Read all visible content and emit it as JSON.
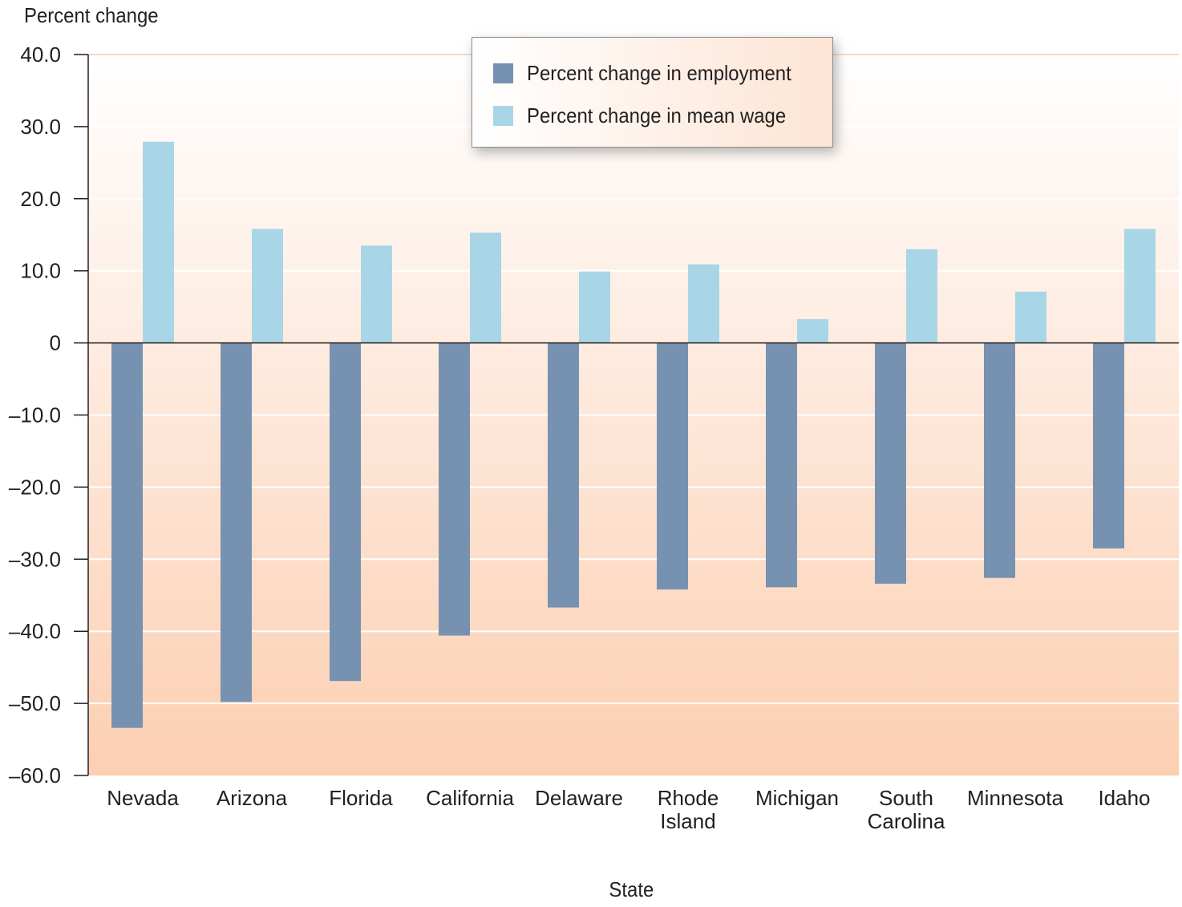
{
  "chart_data": {
    "type": "bar",
    "ylabel": "Percent change",
    "xlabel": "State",
    "ylim": [
      -60,
      40
    ],
    "yticks": [
      {
        "value": 40,
        "label": "40.0"
      },
      {
        "value": 30,
        "label": "30.0"
      },
      {
        "value": 20,
        "label": "20.0"
      },
      {
        "value": 10,
        "label": "10.0"
      },
      {
        "value": 0,
        "label": "0"
      },
      {
        "value": -10,
        "label": "–10.0"
      },
      {
        "value": -20,
        "label": "–20.0"
      },
      {
        "value": -30,
        "label": "–30.0"
      },
      {
        "value": -40,
        "label": "–40.0"
      },
      {
        "value": -50,
        "label": "–50.0"
      },
      {
        "value": -60,
        "label": "–60.0"
      }
    ],
    "categories": [
      [
        "Nevada"
      ],
      [
        "Arizona"
      ],
      [
        "Florida"
      ],
      [
        "California"
      ],
      [
        "Delaware"
      ],
      [
        "Rhode",
        "Island"
      ],
      [
        "Michigan"
      ],
      [
        "South",
        "Carolina"
      ],
      [
        "Minnesota"
      ],
      [
        "Idaho"
      ]
    ],
    "series": [
      {
        "name": "Percent change in employment",
        "color": "#7792b1",
        "values": [
          -53.4,
          -49.8,
          -46.9,
          -40.6,
          -36.7,
          -34.2,
          -33.9,
          -33.4,
          -32.6,
          -28.5
        ]
      },
      {
        "name": "Percent change in mean wage",
        "color": "#a8d6e6",
        "values": [
          27.9,
          15.8,
          13.5,
          15.3,
          9.9,
          10.9,
          3.3,
          13.0,
          7.1,
          15.8
        ]
      }
    ],
    "grid": true,
    "legend_position": "top-center",
    "background_gradient": {
      "top": "#ffffff",
      "bottom": "#fccfb2"
    },
    "gridline_color": "#ffffff",
    "top_gridline_color": "#f8d9c3"
  }
}
